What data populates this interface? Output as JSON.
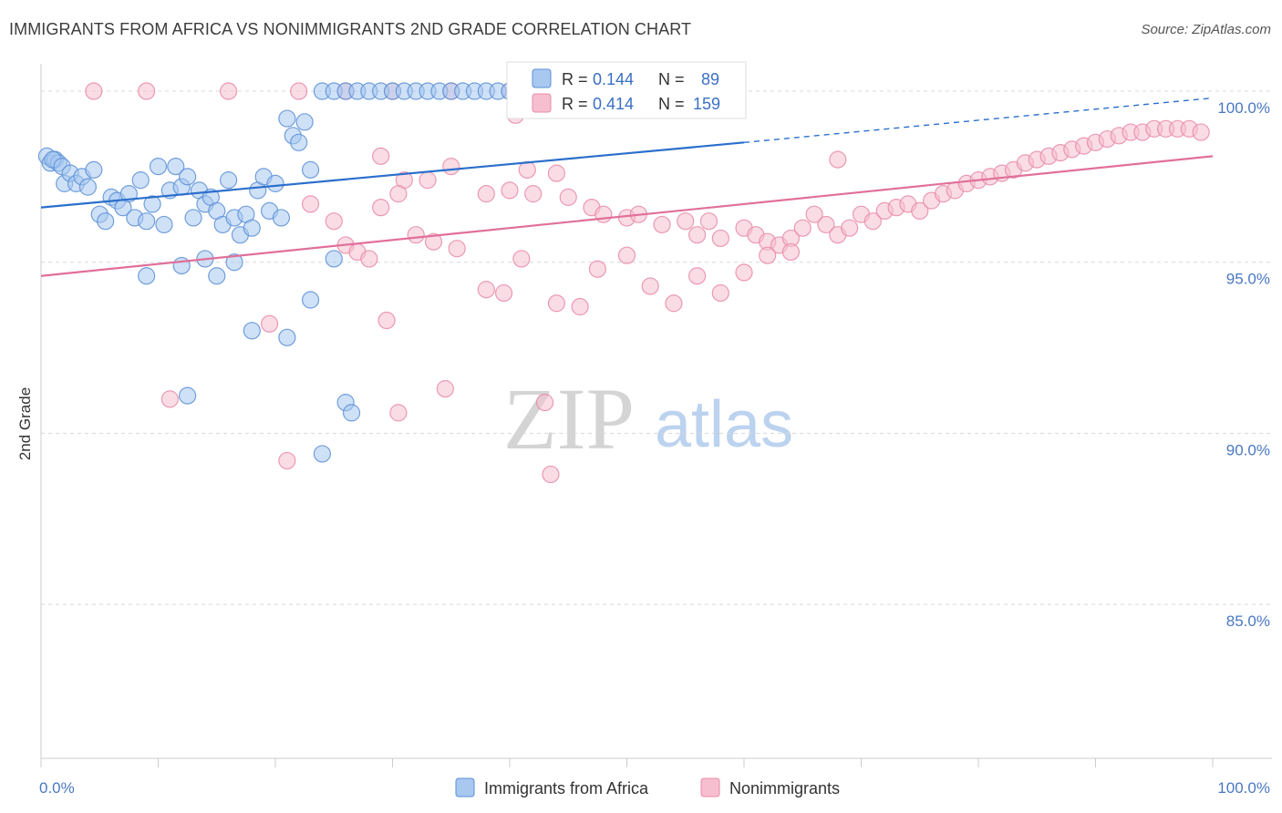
{
  "header": {
    "title": "IMMIGRANTS FROM AFRICA VS NONIMMIGRANTS 2ND GRADE CORRELATION CHART",
    "source": "Source: ZipAtlas.com"
  },
  "watermark": {
    "zip": "ZIP",
    "atlas": "atlas"
  },
  "legend": {
    "r_label": "R =",
    "n_label": "N =",
    "items": [
      {
        "r": "0.144",
        "n": "89"
      },
      {
        "r": "0.414",
        "n": "159"
      }
    ]
  },
  "bottom_legend": {
    "items": [
      {
        "label": "Immigrants from Africa"
      },
      {
        "label": "Nonimmigrants"
      }
    ]
  },
  "colors": {
    "blue_fill": "#a8c8f0",
    "blue_stroke": "#5b8fd6",
    "blue_line": "#2a6fcc",
    "pink_fill": "#f6bfd0",
    "pink_stroke": "#e88aa8",
    "pink_line": "#e0709a",
    "grid": "#d8d8d8",
    "tick_text": "#4a78c2"
  },
  "chart_data": {
    "type": "scatter",
    "title": "IMMIGRANTS FROM AFRICA VS NONIMMIGRANTS 2ND GRADE CORRELATION CHART",
    "xlabel": "",
    "ylabel": "2nd Grade",
    "xlim": [
      0,
      100
    ],
    "ylim": [
      80.5,
      100.8
    ],
    "x_tick_labels": [
      "0.0%",
      "100.0%"
    ],
    "y_ticks": [
      85,
      90,
      95,
      100
    ],
    "y_tick_labels": [
      "85.0%",
      "90.0%",
      "95.0%",
      "100.0%"
    ],
    "grid": true,
    "legend_position": "top-center",
    "series": [
      {
        "name": "Immigrants from Africa",
        "color": "#a8c8f0",
        "trend": {
          "x": [
            0,
            60
          ],
          "y": [
            96.6,
            98.5
          ],
          "dashed_extension_to": [
            100,
            99.8
          ]
        },
        "points": [
          [
            0.5,
            98.1
          ],
          [
            0.8,
            97.9
          ],
          [
            1.2,
            98.0
          ],
          [
            1.5,
            97.9
          ],
          [
            1.0,
            98.0
          ],
          [
            1.8,
            97.8
          ],
          [
            2.0,
            97.3
          ],
          [
            2.5,
            97.6
          ],
          [
            3.0,
            97.3
          ],
          [
            3.5,
            97.5
          ],
          [
            4.0,
            97.2
          ],
          [
            4.5,
            97.7
          ],
          [
            5.0,
            96.4
          ],
          [
            5.5,
            96.2
          ],
          [
            6.0,
            96.9
          ],
          [
            6.5,
            96.8
          ],
          [
            7.0,
            96.6
          ],
          [
            7.5,
            97.0
          ],
          [
            8.0,
            96.3
          ],
          [
            8.5,
            97.4
          ],
          [
            9.0,
            96.2
          ],
          [
            9.5,
            96.7
          ],
          [
            10.0,
            97.8
          ],
          [
            10.5,
            96.1
          ],
          [
            11.0,
            97.1
          ],
          [
            11.5,
            97.8
          ],
          [
            12.0,
            97.2
          ],
          [
            12.5,
            97.5
          ],
          [
            13.0,
            96.3
          ],
          [
            13.5,
            97.1
          ],
          [
            14.0,
            96.7
          ],
          [
            14.5,
            96.9
          ],
          [
            15.0,
            96.5
          ],
          [
            15.5,
            96.1
          ],
          [
            16.0,
            97.4
          ],
          [
            16.5,
            96.3
          ],
          [
            17.0,
            95.8
          ],
          [
            17.5,
            96.4
          ],
          [
            18.0,
            96.0
          ],
          [
            18.5,
            97.1
          ],
          [
            19.0,
            97.5
          ],
          [
            19.5,
            96.5
          ],
          [
            20.0,
            97.3
          ],
          [
            20.5,
            96.3
          ],
          [
            21.0,
            99.2
          ],
          [
            21.5,
            98.7
          ],
          [
            22.0,
            98.5
          ],
          [
            22.5,
            99.1
          ],
          [
            23.0,
            97.7
          ],
          [
            24.0,
            100.0
          ],
          [
            25.0,
            100.0
          ],
          [
            26.0,
            100.0
          ],
          [
            27.0,
            100.0
          ],
          [
            28.0,
            100.0
          ],
          [
            29.0,
            100.0
          ],
          [
            30.0,
            100.0
          ],
          [
            31.0,
            100.0
          ],
          [
            32.0,
            100.0
          ],
          [
            33.0,
            100.0
          ],
          [
            34.0,
            100.0
          ],
          [
            35.0,
            100.0
          ],
          [
            36.0,
            100.0
          ],
          [
            37.0,
            100.0
          ],
          [
            38.0,
            100.0
          ],
          [
            39.0,
            100.0
          ],
          [
            40.0,
            100.0
          ],
          [
            41.0,
            100.0
          ],
          [
            42.0,
            100.0
          ],
          [
            43.0,
            100.0
          ],
          [
            44.0,
            100.0
          ],
          [
            45.0,
            100.0
          ],
          [
            46.0,
            100.0
          ],
          [
            47.0,
            100.0
          ],
          [
            48.0,
            100.0
          ],
          [
            49.0,
            100.0
          ],
          [
            50.0,
            100.0
          ],
          [
            9.0,
            94.6
          ],
          [
            12.0,
            94.9
          ],
          [
            14.0,
            95.1
          ],
          [
            15.0,
            94.6
          ],
          [
            16.5,
            95.0
          ],
          [
            18.0,
            93.0
          ],
          [
            21.0,
            92.8
          ],
          [
            23.0,
            93.9
          ],
          [
            25.0,
            95.1
          ],
          [
            12.5,
            91.1
          ],
          [
            26.0,
            90.9
          ],
          [
            26.5,
            90.6
          ],
          [
            24.0,
            89.4
          ]
        ]
      },
      {
        "name": "Nonimmigrants",
        "color": "#f6bfd0",
        "trend": {
          "x": [
            0,
            100
          ],
          "y": [
            94.6,
            98.1
          ]
        },
        "points": [
          [
            4.5,
            100.0
          ],
          [
            9.0,
            100.0
          ],
          [
            16.0,
            100.0
          ],
          [
            22.0,
            100.0
          ],
          [
            26.0,
            100.0
          ],
          [
            30.0,
            100.0
          ],
          [
            35.0,
            100.0
          ],
          [
            40.0,
            100.0
          ],
          [
            46.0,
            100.0
          ],
          [
            40.5,
            99.3
          ],
          [
            29.0,
            98.1
          ],
          [
            31.0,
            97.4
          ],
          [
            33.0,
            97.4
          ],
          [
            35.0,
            97.8
          ],
          [
            38.0,
            97.0
          ],
          [
            40.0,
            97.1
          ],
          [
            41.5,
            97.7
          ],
          [
            42.0,
            97.0
          ],
          [
            44.0,
            97.6
          ],
          [
            45.0,
            96.9
          ],
          [
            47.0,
            96.6
          ],
          [
            48.0,
            96.4
          ],
          [
            50.0,
            96.3
          ],
          [
            51.0,
            96.4
          ],
          [
            53.0,
            96.1
          ],
          [
            55.0,
            96.2
          ],
          [
            56.0,
            95.8
          ],
          [
            57.0,
            96.2
          ],
          [
            58.0,
            95.7
          ],
          [
            60.0,
            96.0
          ],
          [
            61.0,
            95.8
          ],
          [
            62.0,
            95.6
          ],
          [
            63.0,
            95.5
          ],
          [
            64.0,
            95.7
          ],
          [
            65.0,
            96.0
          ],
          [
            66.0,
            96.4
          ],
          [
            67.0,
            96.1
          ],
          [
            68.0,
            95.8
          ],
          [
            69.0,
            96.0
          ],
          [
            70.0,
            96.4
          ],
          [
            71.0,
            96.2
          ],
          [
            72.0,
            96.5
          ],
          [
            73.0,
            96.6
          ],
          [
            74.0,
            96.7
          ],
          [
            75.0,
            96.5
          ],
          [
            76.0,
            96.8
          ],
          [
            77.0,
            97.0
          ],
          [
            78.0,
            97.1
          ],
          [
            79.0,
            97.3
          ],
          [
            80.0,
            97.4
          ],
          [
            81.0,
            97.5
          ],
          [
            82.0,
            97.6
          ],
          [
            83.0,
            97.7
          ],
          [
            84.0,
            97.9
          ],
          [
            85.0,
            98.0
          ],
          [
            86.0,
            98.1
          ],
          [
            87.0,
            98.2
          ],
          [
            88.0,
            98.3
          ],
          [
            89.0,
            98.4
          ],
          [
            90.0,
            98.5
          ],
          [
            91.0,
            98.6
          ],
          [
            92.0,
            98.7
          ],
          [
            93.0,
            98.8
          ],
          [
            94.0,
            98.8
          ],
          [
            95.0,
            98.9
          ],
          [
            96.0,
            98.9
          ],
          [
            97.0,
            98.9
          ],
          [
            98.0,
            98.9
          ],
          [
            99.0,
            98.8
          ],
          [
            68.0,
            98.0
          ],
          [
            23.0,
            96.7
          ],
          [
            25.0,
            96.2
          ],
          [
            26.0,
            95.5
          ],
          [
            27.0,
            95.3
          ],
          [
            28.0,
            95.1
          ],
          [
            29.0,
            96.6
          ],
          [
            30.5,
            97.0
          ],
          [
            32.0,
            95.8
          ],
          [
            33.5,
            95.6
          ],
          [
            35.5,
            95.4
          ],
          [
            38.0,
            94.2
          ],
          [
            39.5,
            94.1
          ],
          [
            41.0,
            95.1
          ],
          [
            44.0,
            93.8
          ],
          [
            46.0,
            93.7
          ],
          [
            47.5,
            94.8
          ],
          [
            50.0,
            95.2
          ],
          [
            52.0,
            94.3
          ],
          [
            54.0,
            93.8
          ],
          [
            56.0,
            94.6
          ],
          [
            58.0,
            94.1
          ],
          [
            60.0,
            94.7
          ],
          [
            62.0,
            95.2
          ],
          [
            64.0,
            95.3
          ],
          [
            19.5,
            93.2
          ],
          [
            29.5,
            93.3
          ],
          [
            11.0,
            91.0
          ],
          [
            21.0,
            89.2
          ],
          [
            30.5,
            90.6
          ],
          [
            34.5,
            91.3
          ],
          [
            43.0,
            90.9
          ],
          [
            43.5,
            88.8
          ]
        ]
      }
    ]
  }
}
